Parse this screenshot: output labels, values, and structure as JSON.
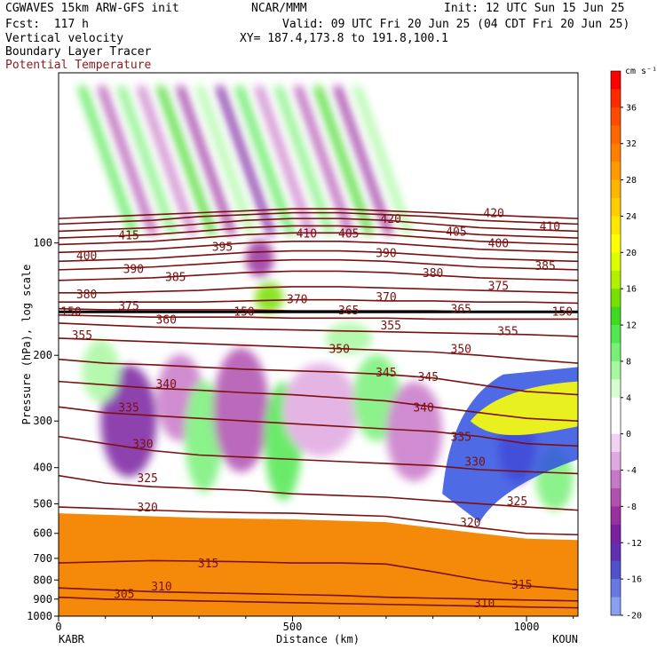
{
  "header": {
    "model": "CGWAVES 15km ARW-GFS init",
    "center": "NCAR/MMM",
    "init": "Init: 12 UTC Sun 15 Jun 25",
    "fcst": "Fcst:  117 h",
    "valid": "Valid: 09 UTC Fri 20 Jun 25 (04 CDT Fri 20 Jun 25)",
    "field1": "Vertical velocity",
    "xy": "XY= 187.4,173.8 to 191.8,100.1",
    "field2": "Boundary Layer Tracer",
    "field3": "Potential Temperature"
  },
  "colors": {
    "theta_lines": "#7a1010",
    "field3_text": "#8b1a1a",
    "tracer_fill": "#f58a0a"
  },
  "chart_data": {
    "type": "heatmap",
    "xlabel": "Distance (km)",
    "ylabel": "Pressure (hPa), log scale",
    "x_ticks": [
      "0",
      "500",
      "1000"
    ],
    "x_tick_values": [
      0,
      500,
      1000
    ],
    "xlim": [
      0,
      1110
    ],
    "y_ticks": [
      "100",
      "200",
      "300",
      "400",
      "500",
      "600",
      "700",
      "800",
      "900",
      "1000"
    ],
    "y_tick_values": [
      100,
      200,
      300,
      400,
      500,
      600,
      700,
      800,
      900,
      1000
    ],
    "ylim": [
      1000,
      35
    ],
    "y_scale": "log",
    "endpoints": {
      "left": "KABR",
      "right": "KOUN"
    },
    "colorbar": {
      "unit": "cm s⁻¹",
      "labels": [
        "36",
        "32",
        "28",
        "24",
        "20",
        "16",
        "12",
        "8",
        "4",
        "0",
        "-4",
        "-8",
        "-12",
        "-16",
        "-20"
      ],
      "label_values": [
        36,
        32,
        28,
        24,
        20,
        16,
        12,
        8,
        4,
        0,
        -4,
        -8,
        -12,
        -16,
        -20
      ],
      "bins": [
        {
          "min": 38,
          "color": "#ff0000"
        },
        {
          "min": 36,
          "color": "#ff2a00"
        },
        {
          "min": 34,
          "color": "#ff4a00"
        },
        {
          "min": 32,
          "color": "#ff6600"
        },
        {
          "min": 30,
          "color": "#ff8000"
        },
        {
          "min": 28,
          "color": "#ff9a00"
        },
        {
          "min": 26,
          "color": "#ffb400"
        },
        {
          "min": 24,
          "color": "#ffcc00"
        },
        {
          "min": 22,
          "color": "#ffe600"
        },
        {
          "min": 20,
          "color": "#ffff00"
        },
        {
          "min": 18,
          "color": "#dcff00"
        },
        {
          "min": 16,
          "color": "#b0f000"
        },
        {
          "min": 14,
          "color": "#78e000"
        },
        {
          "min": 12,
          "color": "#40d820"
        },
        {
          "min": 10,
          "color": "#50e850"
        },
        {
          "min": 8,
          "color": "#78f078"
        },
        {
          "min": 6,
          "color": "#a8f8a0"
        },
        {
          "min": 4,
          "color": "#d8ffd0"
        },
        {
          "min": 2,
          "color": "#ffffff"
        },
        {
          "min": 0,
          "color": "#ffffff"
        },
        {
          "min": -2,
          "color": "#f2d2f2"
        },
        {
          "min": -4,
          "color": "#e0a8e0"
        },
        {
          "min": -6,
          "color": "#c878c8"
        },
        {
          "min": -8,
          "color": "#b050b0"
        },
        {
          "min": -10,
          "color": "#9a30a0"
        },
        {
          "min": -12,
          "color": "#7a20a0"
        },
        {
          "min": -14,
          "color": "#6030b0"
        },
        {
          "min": -16,
          "color": "#5050c8"
        },
        {
          "min": -18,
          "color": "#6878e0"
        },
        {
          "min": -20,
          "color": "#88a0f0"
        }
      ]
    },
    "theta_contours": [
      {
        "value": 305,
        "p": [
          890,
          900,
          905,
          910,
          915,
          920,
          925,
          930,
          935,
          940,
          945,
          950
        ]
      },
      {
        "value": 310,
        "p": [
          840,
          850,
          860,
          865,
          870,
          875,
          880,
          890,
          895,
          900,
          905,
          910
        ]
      },
      {
        "value": 315,
        "p": [
          720,
          715,
          710,
          712,
          715,
          720,
          720,
          725,
          760,
          800,
          830,
          850
        ]
      },
      {
        "value": 320,
        "p": [
          510,
          515,
          520,
          525,
          528,
          530,
          535,
          540,
          560,
          580,
          600,
          605
        ]
      },
      {
        "value": 325,
        "p": [
          420,
          440,
          450,
          455,
          460,
          470,
          475,
          480,
          490,
          500,
          510,
          520
        ]
      },
      {
        "value": 330,
        "p": [
          330,
          345,
          360,
          370,
          375,
          380,
          385,
          390,
          395,
          405,
          410,
          415
        ]
      },
      {
        "value": 335,
        "p": [
          275,
          285,
          290,
          295,
          300,
          305,
          310,
          315,
          320,
          330,
          345,
          350
        ]
      },
      {
        "value": 340,
        "p": [
          235,
          240,
          245,
          248,
          252,
          255,
          260,
          265,
          275,
          285,
          295,
          300
        ]
      },
      {
        "value": 345,
        "p": [
          205,
          210,
          212,
          215,
          218,
          220,
          222,
          225,
          230,
          240,
          250,
          255
        ]
      },
      {
        "value": 350,
        "p": [
          180,
          182,
          184,
          186,
          188,
          190,
          192,
          194,
          196,
          200,
          205,
          210
        ]
      },
      {
        "value": 355,
        "p": [
          164,
          166,
          168,
          169,
          170,
          171,
          172,
          173,
          174,
          175,
          176,
          178
        ]
      },
      {
        "value": 360,
        "p": [
          156,
          157,
          158,
          158,
          158,
          159,
          159,
          159,
          160,
          160,
          160,
          160
        ]
      },
      {
        "value": 365,
        "p": [
          150,
          151,
          151,
          151,
          151,
          152,
          152,
          152,
          152,
          153,
          153,
          153
        ]
      },
      {
        "value": 370,
        "p": [
          144,
          144,
          144,
          144,
          143,
          142,
          142,
          143,
          143,
          144,
          144,
          145
        ]
      },
      {
        "value": 375,
        "p": [
          136,
          136,
          135,
          134,
          132,
          131,
          131,
          132,
          133,
          134,
          135,
          136
        ]
      },
      {
        "value": 380,
        "p": [
          126,
          125,
          124,
          122,
          120,
          119,
          119,
          120,
          122,
          124,
          125,
          126
        ]
      },
      {
        "value": 385,
        "p": [
          118,
          117,
          116,
          114,
          112,
          111,
          111,
          112,
          114,
          116,
          117,
          118
        ]
      },
      {
        "value": 390,
        "p": [
          112,
          111,
          110,
          108,
          106,
          105,
          105,
          106,
          108,
          110,
          111,
          112
        ]
      },
      {
        "value": 395,
        "p": [
          106,
          105,
          104,
          102,
          100,
          99,
          99,
          100,
          102,
          104,
          105,
          106
        ]
      },
      {
        "value": 400,
        "p": [
          101,
          100,
          99,
          97,
          95,
          94,
          94,
          95,
          97,
          99,
          100,
          101
        ]
      },
      {
        "value": 405,
        "p": [
          97,
          96,
          95,
          93,
          91,
          90,
          90,
          91,
          93,
          95,
          96,
          97
        ]
      },
      {
        "value": 410,
        "p": [
          93,
          92,
          91,
          89,
          87,
          86,
          86,
          87,
          89,
          91,
          92,
          93
        ]
      },
      {
        "value": 415,
        "p": [
          89,
          88,
          87,
          85,
          84,
          83,
          83,
          84,
          85,
          87,
          88,
          89
        ]
      },
      {
        "value": 420,
        "p": [
          86,
          85,
          84,
          83,
          82,
          81,
          81,
          82,
          83,
          84,
          85,
          86
        ]
      }
    ],
    "contour_x": [
      0,
      100,
      200,
      300,
      400,
      500,
      600,
      700,
      800,
      900,
      1000,
      1110
    ],
    "theta_labels": [
      {
        "text": "305",
        "x": 140,
        "p": 870
      },
      {
        "text": "310",
        "x": 220,
        "p": 830
      },
      {
        "text": "310",
        "x": 910,
        "p": 920
      },
      {
        "text": "315",
        "x": 320,
        "p": 720
      },
      {
        "text": "315",
        "x": 990,
        "p": 820
      },
      {
        "text": "320",
        "x": 190,
        "p": 510
      },
      {
        "text": "320",
        "x": 880,
        "p": 560
      },
      {
        "text": "325",
        "x": 190,
        "p": 425
      },
      {
        "text": "325",
        "x": 980,
        "p": 490
      },
      {
        "text": "330",
        "x": 180,
        "p": 345
      },
      {
        "text": "330",
        "x": 890,
        "p": 385
      },
      {
        "text": "335",
        "x": 150,
        "p": 275
      },
      {
        "text": "335",
        "x": 860,
        "p": 330
      },
      {
        "text": "340",
        "x": 230,
        "p": 238
      },
      {
        "text": "340",
        "x": 780,
        "p": 275
      },
      {
        "text": "345",
        "x": 700,
        "p": 222
      },
      {
        "text": "345",
        "x": 790,
        "p": 228
      },
      {
        "text": "350",
        "x": 600,
        "p": 192
      },
      {
        "text": "350",
        "x": 860,
        "p": 192
      },
      {
        "text": "355",
        "x": 50,
        "p": 176
      },
      {
        "text": "355",
        "x": 710,
        "p": 166
      },
      {
        "text": "355",
        "x": 960,
        "p": 172
      },
      {
        "text": "360",
        "x": 230,
        "p": 160
      },
      {
        "text": "365",
        "x": 620,
        "p": 151
      },
      {
        "text": "365",
        "x": 860,
        "p": 150
      },
      {
        "text": "370",
        "x": 510,
        "p": 141
      },
      {
        "text": "370",
        "x": 700,
        "p": 139
      },
      {
        "text": "375",
        "x": 150,
        "p": 147
      },
      {
        "text": "375",
        "x": 940,
        "p": 130
      },
      {
        "text": "380",
        "x": 60,
        "p": 137
      },
      {
        "text": "380",
        "x": 800,
        "p": 120
      },
      {
        "text": "385",
        "x": 250,
        "p": 123
      },
      {
        "text": "385",
        "x": 1040,
        "p": 115
      },
      {
        "text": "390",
        "x": 160,
        "p": 117
      },
      {
        "text": "390",
        "x": 700,
        "p": 106
      },
      {
        "text": "395",
        "x": 350,
        "p": 102
      },
      {
        "text": "400",
        "x": 60,
        "p": 108
      },
      {
        "text": "400",
        "x": 940,
        "p": 100
      },
      {
        "text": "405",
        "x": 620,
        "p": 94
      },
      {
        "text": "405",
        "x": 850,
        "p": 93
      },
      {
        "text": "410",
        "x": 530,
        "p": 94
      },
      {
        "text": "410",
        "x": 1050,
        "p": 90
      },
      {
        "text": "415",
        "x": 150,
        "p": 95
      },
      {
        "text": "420",
        "x": 710,
        "p": 86
      },
      {
        "text": "420",
        "x": 930,
        "p": 83
      }
    ],
    "tropopause_p": 153,
    "tropopause_labels": [
      "150",
      "150",
      "150"
    ]
  }
}
